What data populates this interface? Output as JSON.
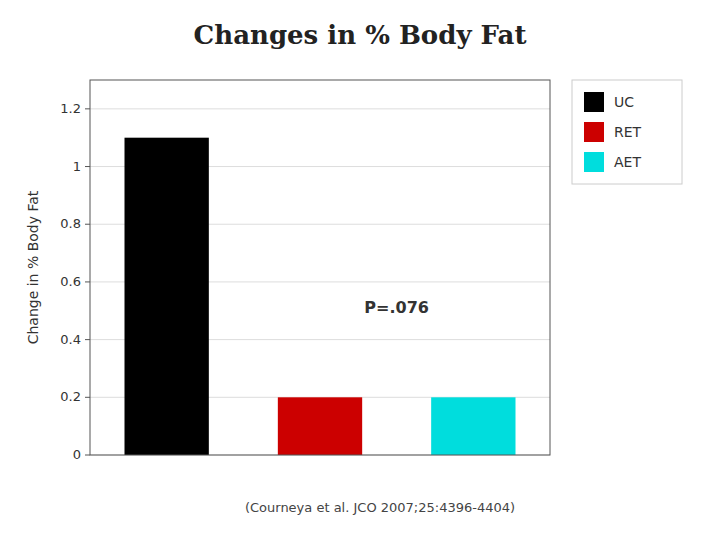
{
  "chart_data": {
    "type": "bar",
    "title": "Changes in % Body Fat",
    "y_label": "Change in % Body Fat",
    "categories": [
      "UC",
      "RET",
      "AET"
    ],
    "values": [
      1.1,
      0.2,
      0.2
    ],
    "colors": [
      "#000000",
      "#CC0000",
      "#00DDDD"
    ],
    "ylim": [
      0,
      1.3
    ],
    "yticks": [
      0,
      0.2,
      0.4,
      0.6,
      0.8,
      1,
      1.2
    ],
    "grid": true,
    "legend": "right",
    "tick_labels": "y",
    "annotation": "P=.076",
    "source": "(Courneya et al. JCO 2007;25:4396-4404)"
  }
}
